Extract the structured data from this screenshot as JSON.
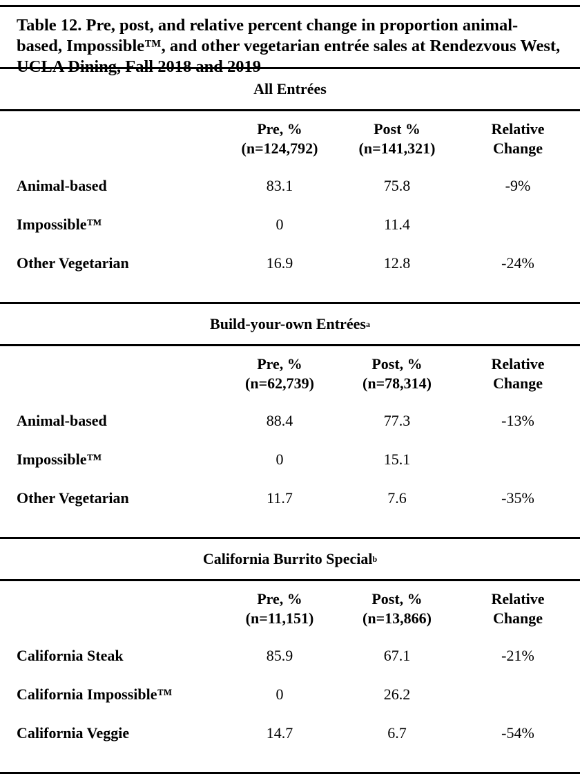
{
  "title": "Table 12. Pre, post, and relative percent change in proportion animal-based, Impossible™, and other vegetarian entrée sales at Rendezvous West, UCLA Dining, Fall 2018 and 2019",
  "sections": [
    {
      "name": "All Entrées",
      "sup": "",
      "pre_label": "Pre, %",
      "pre_n": "(n=124,792)",
      "post_label": "Post %",
      "post_n": "(n=141,321)",
      "rel_label1": "Relative",
      "rel_label2": "Change",
      "rows": [
        {
          "label": "Animal-based",
          "pre": "83.1",
          "post": "75.8",
          "rel": "-9%"
        },
        {
          "label": "Impossible™",
          "pre": "0",
          "post": "11.4",
          "rel": ""
        },
        {
          "label": "Other Vegetarian",
          "pre": "16.9",
          "post": "12.8",
          "rel": "-24%"
        }
      ]
    },
    {
      "name": "Build-your-own Entrées",
      "sup": "a",
      "pre_label": "Pre, %",
      "pre_n": "(n=62,739)",
      "post_label": "Post, %",
      "post_n": "(n=78,314)",
      "rel_label1": "Relative",
      "rel_label2": "Change",
      "rows": [
        {
          "label": "Animal-based",
          "pre": "88.4",
          "post": "77.3",
          "rel": "-13%"
        },
        {
          "label": "Impossible™",
          "pre": "0",
          "post": "15.1",
          "rel": ""
        },
        {
          "label": "Other Vegetarian",
          "pre": "11.7",
          "post": "7.6",
          "rel": "-35%"
        }
      ]
    },
    {
      "name": "California Burrito Special",
      "sup": "b",
      "pre_label": "Pre, %",
      "pre_n": "(n=11,151)",
      "post_label": "Post, %",
      "post_n": "(n=13,866)",
      "rel_label1": "Relative",
      "rel_label2": "Change",
      "rows": [
        {
          "label": "California Steak",
          "pre": "85.9",
          "post": "67.1",
          "rel": "-21%"
        },
        {
          "label": "California Impossible™",
          "pre": "0",
          "post": "26.2",
          "rel": ""
        },
        {
          "label": "California Veggie",
          "pre": "14.7",
          "post": "6.7",
          "rel": "-54%"
        }
      ]
    }
  ]
}
